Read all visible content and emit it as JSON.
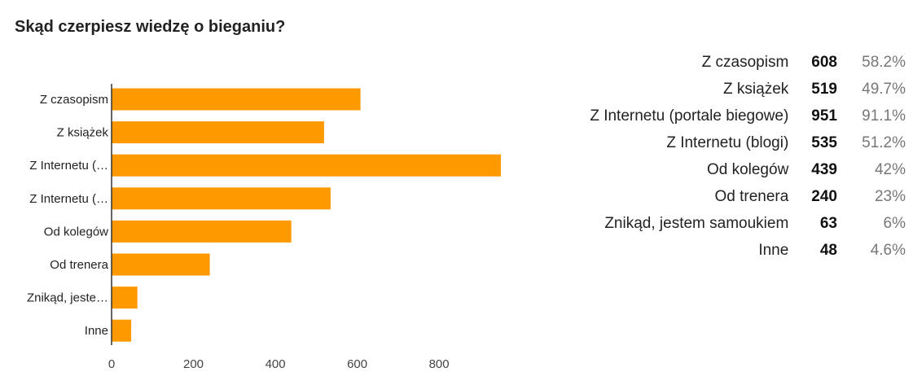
{
  "header": {
    "title": "Skąd czerpiesz wiedzę o bieganiu?"
  },
  "colors": {
    "bar": "#ff9900",
    "axis": "#333333"
  },
  "chart_data": {
    "type": "bar",
    "orientation": "horizontal",
    "categories": [
      "Z czasopism",
      "Z książek",
      "Z Internetu (…",
      "Z Internetu (…",
      "Od kolegów",
      "Od trenera",
      "Znikąd, jeste…",
      "Inne"
    ],
    "values": [
      608,
      519,
      951,
      535,
      439,
      240,
      63,
      48
    ],
    "xticks": [
      0,
      200,
      400,
      600,
      800
    ],
    "xlim": [
      0,
      951
    ],
    "grid": false,
    "legend": "none"
  },
  "summary": {
    "rows": [
      {
        "label": "Z czasopism",
        "count": "608",
        "percent": "58.2%"
      },
      {
        "label": "Z książek",
        "count": "519",
        "percent": "49.7%"
      },
      {
        "label": "Z Internetu (portale biegowe)",
        "count": "951",
        "percent": "91.1%"
      },
      {
        "label": "Z Internetu (blogi)",
        "count": "535",
        "percent": "51.2%"
      },
      {
        "label": "Od kolegów",
        "count": "439",
        "percent": "42%"
      },
      {
        "label": "Od trenera",
        "count": "240",
        "percent": "23%"
      },
      {
        "label": "Znikąd, jestem samoukiem",
        "count": "63",
        "percent": "6%"
      },
      {
        "label": "Inne",
        "count": "48",
        "percent": "4.6%"
      }
    ]
  }
}
